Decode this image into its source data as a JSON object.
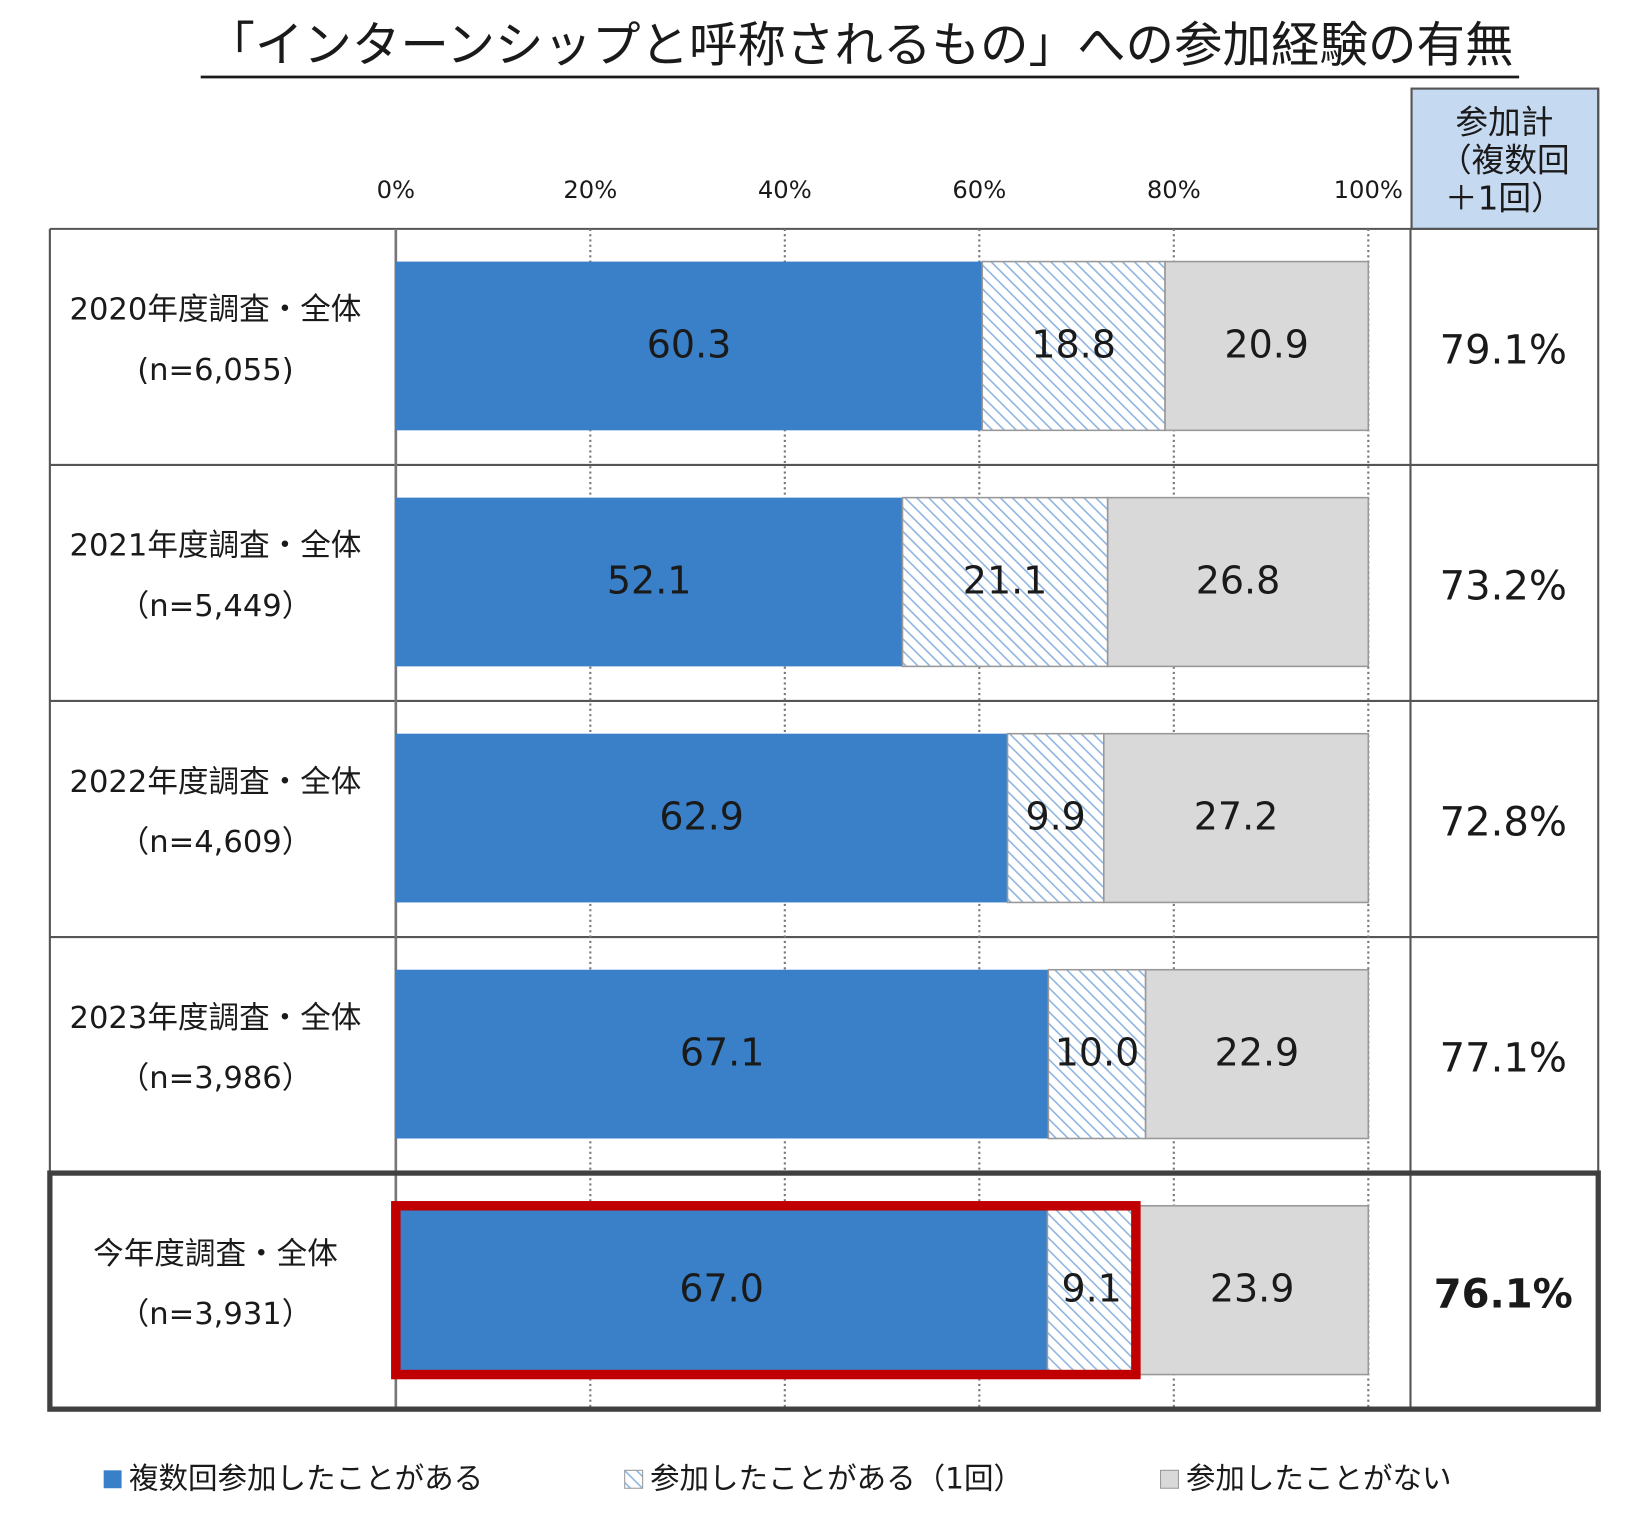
{
  "chart_data": {
    "type": "stacked-bar-horizontal",
    "title": "「インターンシップと呼称されるもの」への参加経験の有無",
    "categories": [
      "2020年度調査・全体",
      "2021年度調査・全体",
      "2022年度調査・全体",
      "2023年度調査・全体",
      "今年度調査・全体"
    ],
    "sample_sizes": [
      "(n=6,055)",
      "（n=5,449）",
      "（n=4,609）",
      "（n=3,986）",
      "（n=3,931）"
    ],
    "series": [
      {
        "name": "複数回参加したことがある",
        "color": "#3a80c8",
        "values": [
          60.3,
          52.1,
          62.9,
          67.1,
          67.0
        ],
        "value_labels": [
          "60.3",
          "52.1",
          "62.9",
          "67.1",
          "67.0"
        ]
      },
      {
        "name": "参加したことがある（1回）",
        "color": "#8fb4df",
        "pattern": "hatch",
        "values": [
          18.8,
          21.1,
          9.9,
          10.0,
          9.1
        ],
        "value_labels": [
          "18.8",
          "21.1",
          "9.9",
          "10.0",
          "9.1"
        ]
      },
      {
        "name": "参加したことがない",
        "color": "#d9d9d9",
        "values": [
          20.9,
          26.8,
          27.2,
          22.9,
          23.9
        ],
        "value_labels": [
          "20.9",
          "26.8",
          "27.2",
          "22.9",
          "23.9"
        ]
      }
    ],
    "totals": {
      "header": [
        "参加計",
        "（複数回",
        "＋1回）"
      ],
      "values": [
        79.1,
        73.2,
        72.8,
        77.1,
        76.1
      ],
      "value_labels": [
        "79.1%",
        "73.2%",
        "72.8%",
        "77.1%",
        "76.1%"
      ],
      "colors": [
        "#1a1a1a",
        "#1a1a1a",
        "#1a1a1a",
        "#1a1a1a",
        "#e00000"
      ]
    },
    "xlim": [
      0,
      100
    ],
    "xticks": [
      {
        "value": 0,
        "label": "0%"
      },
      {
        "value": 20,
        "label": "20%"
      },
      {
        "value": 40,
        "label": "40%"
      },
      {
        "value": 60,
        "label": "60%"
      },
      {
        "value": 80,
        "label": "80%"
      },
      {
        "value": 100,
        "label": "100%"
      }
    ],
    "grid": true
  }
}
